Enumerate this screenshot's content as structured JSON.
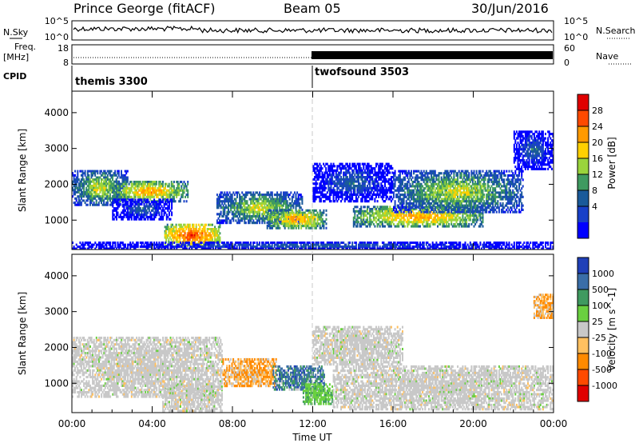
{
  "header": {
    "radar": "Prince George (fitACF)",
    "beam": "Beam 05",
    "date": "30/Jun/2016"
  },
  "noise_panel": {
    "left_label": "N.Sky",
    "left_ticks": [
      "10^5",
      "10^0"
    ],
    "right_ticks": [
      "10^5",
      "10^0"
    ],
    "right_label": "N.Search"
  },
  "freq_panel": {
    "left_label_1": "Freq.",
    "left_label_2": "[MHz]",
    "left_ticks": [
      "18",
      "8"
    ],
    "right_ticks": [
      "60",
      "0"
    ],
    "right_label": "Nave"
  },
  "cpid": {
    "label": "CPID",
    "modes": [
      {
        "name": "themis 3300",
        "start_hour": 0
      },
      {
        "name": "twofsound 3503",
        "start_hour": 12
      }
    ]
  },
  "x_axis": {
    "title": "Time UT",
    "ticks": [
      "00:00",
      "04:00",
      "08:00",
      "12:00",
      "16:00",
      "20:00",
      "00:00"
    ]
  },
  "chart_data": [
    {
      "type": "heatmap",
      "name": "power",
      "ylabel": "Slant Range [km]",
      "yticks": [
        "1000",
        "2000",
        "3000",
        "4000"
      ],
      "ylim": [
        180,
        4600
      ],
      "xlim_hours": [
        0,
        24
      ],
      "colorbar": {
        "title": "Power [dB]",
        "labels": [
          "28",
          "24",
          "20",
          "16",
          "12",
          "8",
          "4"
        ],
        "colors": [
          "#e00000",
          "#ff4a00",
          "#ff9a00",
          "#ffd000",
          "#9ad43c",
          "#3f9a60",
          "#1a5a9a",
          "#1840c8",
          "#0000ff"
        ]
      },
      "regions": [
        {
          "t": [
            0.0,
            2.8
          ],
          "r": [
            1400,
            2400
          ],
          "level": "mid"
        },
        {
          "t": [
            2.0,
            5.8
          ],
          "r": [
            1500,
            2100
          ],
          "level": "high"
        },
        {
          "t": [
            2.0,
            5.0
          ],
          "r": [
            1000,
            1600
          ],
          "level": "low"
        },
        {
          "t": [
            4.6,
            7.4
          ],
          "r": [
            250,
            900
          ],
          "level": "max"
        },
        {
          "t": [
            7.2,
            11.5
          ],
          "r": [
            900,
            1800
          ],
          "level": "mid"
        },
        {
          "t": [
            9.7,
            12.7
          ],
          "r": [
            750,
            1300
          ],
          "level": "high"
        },
        {
          "t": [
            12.0,
            16.0
          ],
          "r": [
            1500,
            2600
          ],
          "level": "low"
        },
        {
          "t": [
            14.0,
            20.5
          ],
          "r": [
            800,
            1400
          ],
          "level": "high"
        },
        {
          "t": [
            16.0,
            22.5
          ],
          "r": [
            1200,
            2400
          ],
          "level": "mid"
        },
        {
          "t": [
            22.0,
            24.0
          ],
          "r": [
            2400,
            3500
          ],
          "level": "low"
        },
        {
          "t": [
            0.0,
            24.0
          ],
          "r": [
            180,
            400
          ],
          "level": "low"
        }
      ]
    },
    {
      "type": "heatmap",
      "name": "velocity",
      "ylabel": "Slant Range [km]",
      "yticks": [
        "1000",
        "2000",
        "3000",
        "4000"
      ],
      "ylim": [
        180,
        4600
      ],
      "xlim_hours": [
        0,
        24
      ],
      "colorbar": {
        "title": "Velocity [m s^-1]",
        "labels": [
          "1000",
          "500",
          "100",
          "25",
          "-25",
          "-100",
          "-500",
          "-1000"
        ],
        "colors": [
          "#2040b8",
          "#3a6ea8",
          "#3f9a60",
          "#6ad040",
          "#c8c8c8",
          "#ffc060",
          "#ff8a00",
          "#ff4a00",
          "#e00000"
        ]
      },
      "regions": [
        {
          "t": [
            0.0,
            7.5
          ],
          "r": [
            600,
            2300
          ],
          "kind": "ground"
        },
        {
          "t": [
            4.5,
            7.5
          ],
          "r": [
            200,
            1000
          ],
          "kind": "ground"
        },
        {
          "t": [
            7.5,
            10.2
          ],
          "r": [
            900,
            1700
          ],
          "kind": "neg"
        },
        {
          "t": [
            10.0,
            12.6
          ],
          "r": [
            800,
            1500
          ],
          "kind": "pos"
        },
        {
          "t": [
            11.5,
            13.0
          ],
          "r": [
            400,
            1000
          ],
          "kind": "green"
        },
        {
          "t": [
            12.0,
            16.5
          ],
          "r": [
            1500,
            2600
          ],
          "kind": "ground"
        },
        {
          "t": [
            13.0,
            24.0
          ],
          "r": [
            250,
            1500
          ],
          "kind": "ground"
        },
        {
          "t": [
            23.0,
            24.0
          ],
          "r": [
            2800,
            3500
          ],
          "kind": "neg"
        }
      ]
    }
  ]
}
